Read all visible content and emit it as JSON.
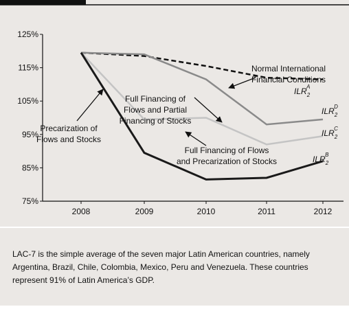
{
  "chart_data": {
    "type": "line",
    "categories": [
      "2008",
      "2009",
      "2010",
      "2011",
      "2012"
    ],
    "ylim": [
      75,
      125
    ],
    "yticks": [
      {
        "value": 75,
        "label": "75%"
      },
      {
        "value": 85,
        "label": "85%"
      },
      {
        "value": 95,
        "label": "95%"
      },
      {
        "value": 105,
        "label": "105%"
      },
      {
        "value": 115,
        "label": "115%"
      },
      {
        "value": 125,
        "label": "125%"
      }
    ],
    "series": [
      {
        "name": "ILR",
        "sub": "2",
        "sup": "A",
        "color": "#111111",
        "dash": true,
        "values": [
          119.5,
          118.5,
          115.5,
          112,
          111.5
        ]
      },
      {
        "name": "ILR",
        "sub": "2",
        "sup": "D",
        "color": "#8a8a8a",
        "dash": false,
        "values": [
          119.5,
          119,
          111.5,
          98,
          99.5
        ]
      },
      {
        "name": "ILR",
        "sub": "2",
        "sup": "C",
        "color": "#c4c4c4",
        "dash": false,
        "values": [
          119.5,
          99.5,
          100,
          92,
          94.5
        ]
      },
      {
        "name": "ILR",
        "sub": "2",
        "sup": "B",
        "color": "#1a1a1a",
        "dash": false,
        "values": [
          119.5,
          89.5,
          81.5,
          82,
          87
        ]
      }
    ],
    "annotations": [
      {
        "lines": [
          "Normal International",
          "Financial Conditions"
        ]
      },
      {
        "lines": [
          "Full Financing of",
          "Flows and Partial",
          "Financing of Stocks"
        ]
      },
      {
        "lines": [
          "Precarization of",
          "Flows and Stocks"
        ]
      },
      {
        "lines": [
          "Full Financing of Flows",
          "and Precarization of Stocks"
        ]
      }
    ],
    "note": [
      "LAC-7 is the simple average of the seven major Latin American countries, namely",
      "Argentina, Brazil, Chile, Colombia, Mexico, Peru and Venezuela. These countries",
      "represent 91% of Latin America’s GDP."
    ]
  }
}
